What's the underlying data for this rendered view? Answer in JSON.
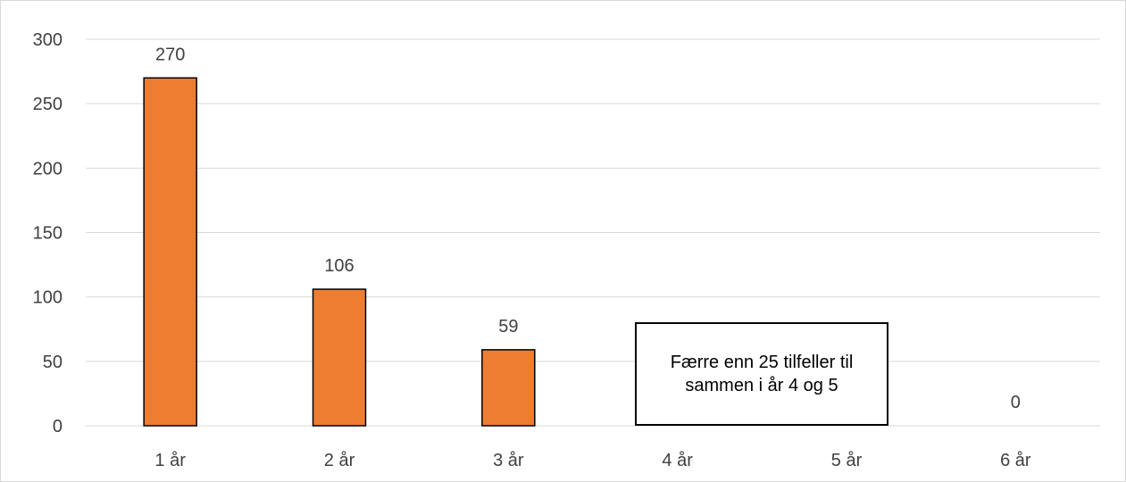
{
  "colors": {
    "bar_fill": "#ED7D31",
    "bar_stroke": "#000000",
    "grid": "#D9D9D9",
    "text": "#404040"
  },
  "chart_data": {
    "type": "bar",
    "title": "",
    "xlabel": "",
    "ylabel": "",
    "categories": [
      "1 år",
      "2 år",
      "3 år",
      "4 år",
      "5 år",
      "6 år"
    ],
    "values": [
      270,
      106,
      59,
      null,
      null,
      0
    ],
    "data_labels": [
      "270",
      "106",
      "59",
      "",
      "",
      "0"
    ],
    "ylim": [
      0,
      300
    ],
    "yticks": [
      0,
      50,
      100,
      150,
      200,
      250,
      300
    ],
    "grid": true,
    "legend": "none",
    "annotation": "Færre enn 25 tilfeller til sammen i år 4 og 5"
  }
}
